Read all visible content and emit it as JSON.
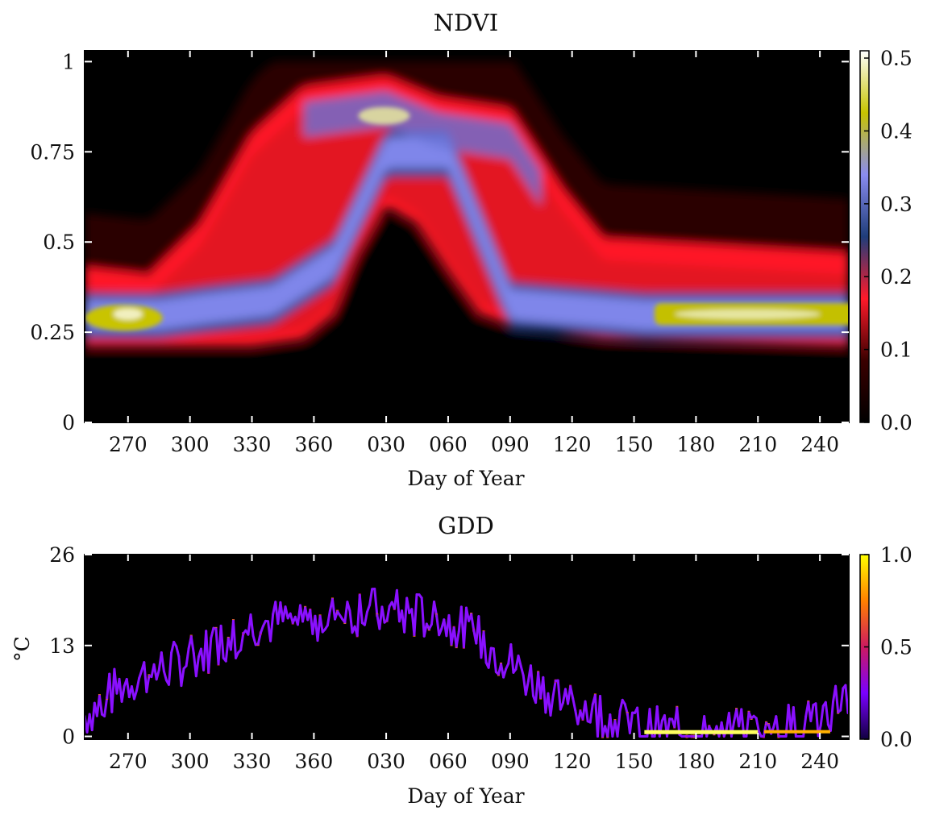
{
  "chart_data": [
    {
      "type": "heatmap",
      "title": "NDVI",
      "xlabel": "Day of Year",
      "ylabel": "",
      "x_ticks": [
        "270",
        "300",
        "330",
        "360",
        "030",
        "060",
        "090",
        "120",
        "150",
        "180",
        "210",
        "240"
      ],
      "x_tick_values": [
        270,
        300,
        330,
        360,
        395,
        425,
        455,
        485,
        515,
        545,
        575,
        605
      ],
      "xlim": [
        249,
        619
      ],
      "y_ticks": [
        "0",
        "0.25",
        "0.5",
        "0.75",
        "1"
      ],
      "y_tick_values": [
        0,
        0.25,
        0.5,
        0.75,
        1
      ],
      "ylim": [
        0,
        1.03
      ],
      "colorbar": {
        "ticks": [
          "0.0",
          "0.1",
          "0.2",
          "0.3",
          "0.4",
          "0.5"
        ],
        "tick_values": [
          0,
          0.1,
          0.2,
          0.3,
          0.4,
          0.5
        ],
        "range": [
          0,
          0.51
        ],
        "colormap": [
          "#000000",
          "#3a0000",
          "#ff1a2a",
          "#1f3d7a",
          "#8a8cf0",
          "#c8c400",
          "#ffffff"
        ]
      },
      "curves": {
        "lower_edge": [
          [
            249,
            0.21
          ],
          [
            330,
            0.21
          ],
          [
            355,
            0.23
          ],
          [
            370,
            0.3
          ],
          [
            380,
            0.45
          ],
          [
            395,
            0.6
          ],
          [
            410,
            0.55
          ],
          [
            425,
            0.42
          ],
          [
            440,
            0.3
          ],
          [
            455,
            0.27
          ],
          [
            500,
            0.23
          ],
          [
            619,
            0.21
          ]
        ],
        "upper_edge": [
          [
            249,
            0.43
          ],
          [
            280,
            0.41
          ],
          [
            305,
            0.55
          ],
          [
            330,
            0.8
          ],
          [
            355,
            0.93
          ],
          [
            395,
            0.96
          ],
          [
            420,
            0.9
          ],
          [
            455,
            0.87
          ],
          [
            480,
            0.65
          ],
          [
            500,
            0.51
          ],
          [
            619,
            0.47
          ]
        ],
        "bright_band": [
          [
            249,
            0.3
          ],
          [
            285,
            0.3
          ],
          [
            310,
            0.32
          ],
          [
            340,
            0.34
          ],
          [
            370,
            0.45
          ],
          [
            395,
            0.75
          ],
          [
            425,
            0.75
          ],
          [
            455,
            0.33
          ],
          [
            520,
            0.3
          ],
          [
            619,
            0.3
          ]
        ]
      }
    },
    {
      "type": "heatmap",
      "title": "GDD",
      "xlabel": "Day of Year",
      "ylabel": "°C",
      "x_ticks": [
        "270",
        "300",
        "330",
        "360",
        "030",
        "060",
        "090",
        "120",
        "150",
        "180",
        "210",
        "240"
      ],
      "x_tick_values": [
        270,
        300,
        330,
        360,
        395,
        425,
        455,
        485,
        515,
        545,
        575,
        605
      ],
      "xlim": [
        249,
        619
      ],
      "y_ticks": [
        "0",
        "13",
        "26"
      ],
      "y_tick_values": [
        0,
        13,
        26
      ],
      "ylim": [
        -0.4,
        26
      ],
      "colorbar": {
        "ticks": [
          "0.0",
          "0.5",
          "1.0"
        ],
        "tick_values": [
          0,
          0.5,
          1.0
        ],
        "range": [
          0,
          1.0
        ],
        "colormap": [
          "#100040",
          "#7a00ff",
          "#cc1a60",
          "#ff8000",
          "#ffff00"
        ]
      },
      "trend": [
        [
          249,
          3
        ],
        [
          270,
          8
        ],
        [
          300,
          11
        ],
        [
          330,
          16
        ],
        [
          360,
          17
        ],
        [
          390,
          18
        ],
        [
          420,
          17
        ],
        [
          440,
          14
        ],
        [
          470,
          7
        ],
        [
          500,
          3
        ],
        [
          520,
          1
        ],
        [
          545,
          0.5
        ],
        [
          575,
          0.5
        ],
        [
          600,
          2
        ],
        [
          619,
          6
        ]
      ]
    }
  ]
}
